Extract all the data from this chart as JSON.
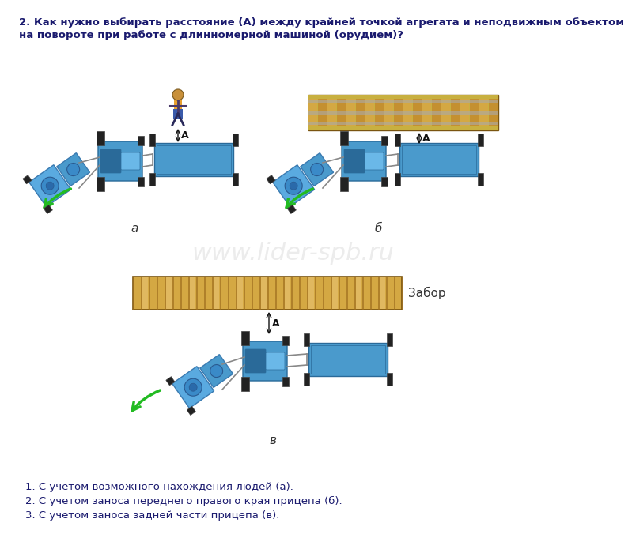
{
  "title_line1": "2. Как нужно выбирать расстояние (А) между крайней точкой агрегата и неподвижным объектом",
  "title_line2": "на повороте при работе с длинномерной машиной (орудием)?",
  "watermark": "www.lider-spb.ru",
  "answer1": "1. С учетом возможного нахождения людей (а).",
  "answer2": "2. С учетом заноса переднего правого края прицепа (б).",
  "answer3": "3. С учетом заноса задней части прицепа (в).",
  "label_a": "а",
  "label_b": "б",
  "label_c": "в",
  "label_fence": "Забор",
  "label_A": "А",
  "bg_color": "#ffffff",
  "text_color": "#1a1a6e",
  "fence_color_light": "#d4a843",
  "fence_color_mid": "#c49030",
  "fence_color_dark": "#a07020",
  "fence_border": "#7a5510",
  "rail_bg": "#c8b040",
  "rail_stripe": "#9a8020",
  "rail_silver": "#aaaaaa",
  "trailer_fill": "#4a9acc",
  "trailer_dark": "#2a6a99",
  "tractor_fill": "#4a9acc",
  "tractor_dark": "#2a6a99",
  "implement_fill": "#5aaae0",
  "wheel_fill": "#222222",
  "wheel_edge": "#444444",
  "hitch_color": "#888888",
  "arrow_green": "#22bb22",
  "annot_color": "#111111",
  "watermark_color": "#d0d0d0",
  "answer_color": "#1a1a6e"
}
